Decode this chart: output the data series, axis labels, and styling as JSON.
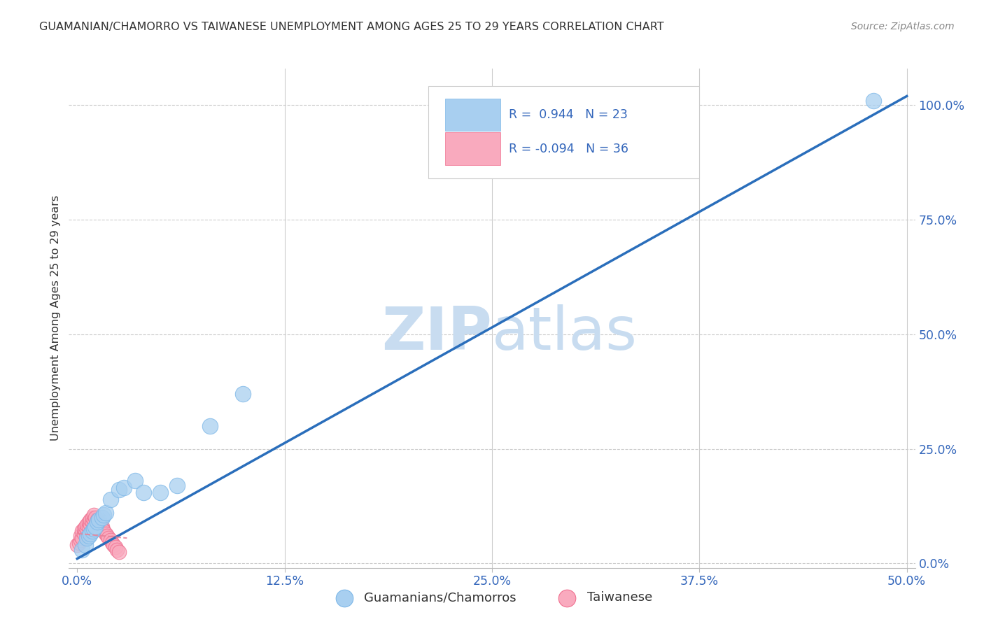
{
  "title": "GUAMANIAN/CHAMORRO VS TAIWANESE UNEMPLOYMENT AMONG AGES 25 TO 29 YEARS CORRELATION CHART",
  "source": "Source: ZipAtlas.com",
  "ylabel": "Unemployment Among Ages 25 to 29 years",
  "xlim": [
    -0.005,
    0.505
  ],
  "ylim": [
    -0.01,
    1.08
  ],
  "xtick_vals": [
    0.0,
    0.125,
    0.25,
    0.375,
    0.5
  ],
  "xtick_labels": [
    "0.0%",
    "12.5%",
    "25.0%",
    "37.5%",
    "50.0%"
  ],
  "ytick_vals": [
    0.0,
    0.25,
    0.5,
    0.75,
    1.0
  ],
  "ytick_labels": [
    "0.0%",
    "25.0%",
    "50.0%",
    "75.0%",
    "100.0%"
  ],
  "blue_r": "0.944",
  "blue_n": "23",
  "pink_r": "-0.094",
  "pink_n": "36",
  "blue_color": "#A8CFF0",
  "blue_edge_color": "#7EB8E8",
  "pink_color": "#F9AABE",
  "pink_edge_color": "#F07090",
  "blue_line_color": "#2A6EBB",
  "pink_line_color": "#E8839A",
  "axis_label_color": "#3366BB",
  "text_color": "#333333",
  "source_color": "#888888",
  "grid_color": "#CCCCCC",
  "watermark_color": "#C8DCF0",
  "legend_label_blue": "Guamanians/Chamorros",
  "legend_label_pink": "Taiwanese",
  "blue_line_x0": 0.0,
  "blue_line_y0": 0.01,
  "blue_line_x1": 0.5,
  "blue_line_y1": 1.02,
  "pink_line_x0": 0.0,
  "pink_line_y0": 0.065,
  "pink_line_x1": 0.03,
  "pink_line_y1": 0.055,
  "blue_points_x": [
    0.003,
    0.005,
    0.006,
    0.007,
    0.008,
    0.009,
    0.01,
    0.011,
    0.012,
    0.013,
    0.015,
    0.016,
    0.017,
    0.02,
    0.025,
    0.028,
    0.035,
    0.04,
    0.05,
    0.06,
    0.08,
    0.1,
    0.48
  ],
  "blue_points_y": [
    0.03,
    0.04,
    0.055,
    0.06,
    0.065,
    0.07,
    0.075,
    0.08,
    0.09,
    0.095,
    0.1,
    0.105,
    0.11,
    0.14,
    0.16,
    0.165,
    0.18,
    0.155,
    0.155,
    0.17,
    0.3,
    0.37,
    1.01
  ],
  "pink_points_x": [
    0.0,
    0.001,
    0.002,
    0.002,
    0.003,
    0.003,
    0.004,
    0.004,
    0.005,
    0.005,
    0.006,
    0.006,
    0.007,
    0.007,
    0.008,
    0.008,
    0.009,
    0.009,
    0.01,
    0.01,
    0.011,
    0.012,
    0.013,
    0.014,
    0.015,
    0.015,
    0.016,
    0.017,
    0.018,
    0.019,
    0.02,
    0.021,
    0.022,
    0.023,
    0.024,
    0.025
  ],
  "pink_points_y": [
    0.04,
    0.045,
    0.05,
    0.06,
    0.055,
    0.07,
    0.065,
    0.075,
    0.07,
    0.08,
    0.075,
    0.085,
    0.08,
    0.09,
    0.085,
    0.095,
    0.09,
    0.1,
    0.095,
    0.105,
    0.1,
    0.095,
    0.09,
    0.085,
    0.08,
    0.075,
    0.07,
    0.065,
    0.06,
    0.055,
    0.05,
    0.045,
    0.04,
    0.035,
    0.03,
    0.025
  ]
}
